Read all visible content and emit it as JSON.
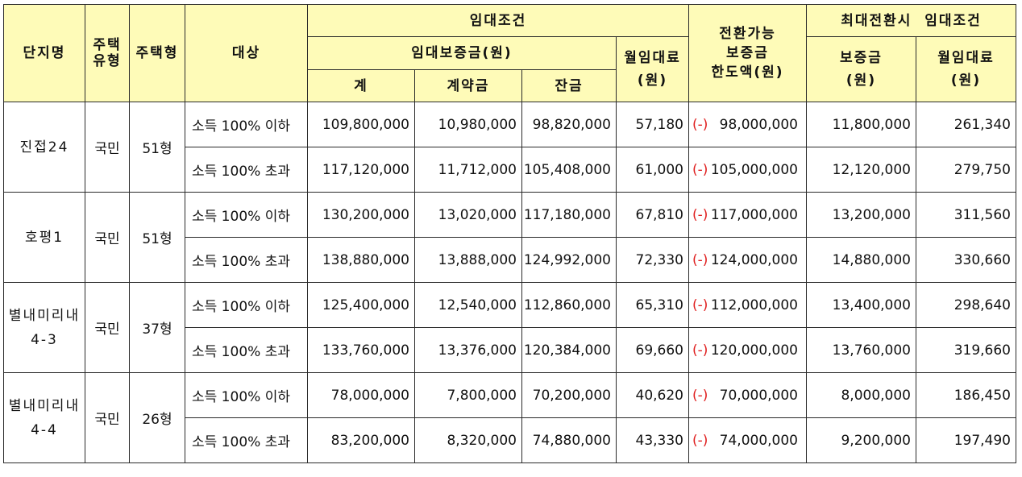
{
  "headers": {
    "complex": "단지명",
    "house_type": "주택\n유형",
    "house_size": "주택형",
    "target": "대상",
    "lease_conditions": "임대조건",
    "deposit_group": "임대보증금(원)",
    "total": "계",
    "contract": "계약금",
    "balance": "잔금",
    "monthly_rent": "월임대료\n(원)",
    "convertible": "전환가능\n보증금\n한도액(원)",
    "max_conversion": "최대전환시  임대조건",
    "max_deposit": "보증금\n(원)",
    "max_monthly": "월임대료\n(원)"
  },
  "groups": [
    {
      "complex": "진접24",
      "type": "국민",
      "size": "51형",
      "rows": [
        {
          "target": "소득 100% 이하",
          "total": "109,800,000",
          "contract": "10,980,000",
          "balance": "98,820,000",
          "monthly": "57,180",
          "minus": "(-)",
          "convertible": "98,000,000",
          "max_deposit": "11,800,000",
          "max_monthly": "261,340"
        },
        {
          "target": "소득 100% 초과",
          "total": "117,120,000",
          "contract": "11,712,000",
          "balance": "105,408,000",
          "monthly": "61,000",
          "minus": "(-)",
          "convertible": "105,000,000",
          "max_deposit": "12,120,000",
          "max_monthly": "279,750"
        }
      ]
    },
    {
      "complex": "호평1",
      "type": "국민",
      "size": "51형",
      "rows": [
        {
          "target": "소득 100% 이하",
          "total": "130,200,000",
          "contract": "13,020,000",
          "balance": "117,180,000",
          "monthly": "67,810",
          "minus": "(-)",
          "convertible": "117,000,000",
          "max_deposit": "13,200,000",
          "max_monthly": "311,560"
        },
        {
          "target": "소득 100% 초과",
          "total": "138,880,000",
          "contract": "13,888,000",
          "balance": "124,992,000",
          "monthly": "72,330",
          "minus": "(-)",
          "convertible": "124,000,000",
          "max_deposit": "14,880,000",
          "max_monthly": "330,660"
        }
      ]
    },
    {
      "complex": "별내미리내\n4-3",
      "type": "국민",
      "size": "37형",
      "rows": [
        {
          "target": "소득 100% 이하",
          "total": "125,400,000",
          "contract": "12,540,000",
          "balance": "112,860,000",
          "monthly": "65,310",
          "minus": "(-)",
          "convertible": "112,000,000",
          "max_deposit": "13,400,000",
          "max_monthly": "298,640"
        },
        {
          "target": "소득 100% 초과",
          "total": "133,760,000",
          "contract": "13,376,000",
          "balance": "120,384,000",
          "monthly": "69,660",
          "minus": "(-)",
          "convertible": "120,000,000",
          "max_deposit": "13,760,000",
          "max_monthly": "319,660"
        }
      ]
    },
    {
      "complex": "별내미리내\n4-4",
      "type": "국민",
      "size": "26형",
      "rows": [
        {
          "target": "소득 100% 이하",
          "total": "78,000,000",
          "contract": "7,800,000",
          "balance": "70,200,000",
          "monthly": "40,620",
          "minus": "(-)",
          "convertible": "70,000,000",
          "max_deposit": "8,000,000",
          "max_monthly": "186,450"
        },
        {
          "target": "소득 100% 초과",
          "total": "83,200,000",
          "contract": "8,320,000",
          "balance": "74,880,000",
          "monthly": "43,330",
          "minus": "(-)",
          "convertible": "74,000,000",
          "max_deposit": "9,200,000",
          "max_monthly": "197,490"
        }
      ]
    }
  ]
}
